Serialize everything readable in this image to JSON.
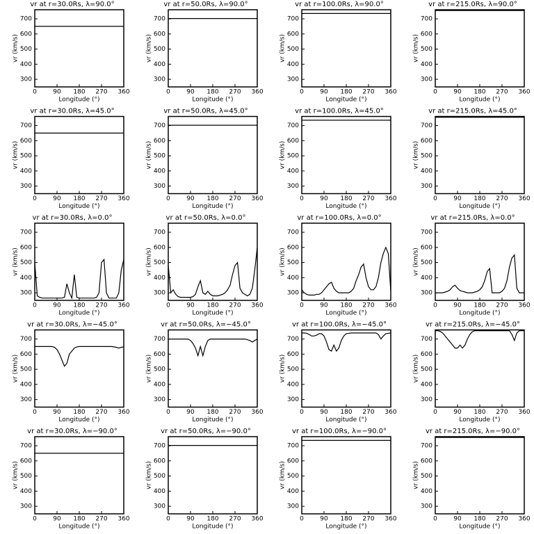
{
  "chart_data": [
    {
      "type": "line",
      "title": "vr at r=30.0Rs, λ=90.0°",
      "xlabel": "Longitude (°)",
      "ylabel": "vr (km/s)",
      "x": [
        0,
        360
      ],
      "values": [
        650,
        650
      ],
      "xlim": [
        0,
        360
      ],
      "ylim": [
        250,
        760
      ],
      "xticks": [
        0,
        90,
        180,
        270,
        360
      ],
      "yticks": [
        300,
        400,
        500,
        600,
        700
      ],
      "color": "#000000"
    },
    {
      "type": "line",
      "title": "vr at r=50.0Rs, λ=90.0°",
      "xlabel": "Longitude (°)",
      "ylabel": "vr (km/s)",
      "x": [
        0,
        360
      ],
      "values": [
        702,
        702
      ],
      "xlim": [
        0,
        360
      ],
      "ylim": [
        250,
        760
      ],
      "xticks": [
        0,
        90,
        180,
        270,
        360
      ],
      "yticks": [
        300,
        400,
        500,
        600,
        700
      ],
      "color": "#000000"
    },
    {
      "type": "line",
      "title": "vr at r=100.0Rs, λ=90.0°",
      "xlabel": "Longitude (°)",
      "ylabel": "vr (km/s)",
      "x": [
        0,
        360
      ],
      "values": [
        735,
        735
      ],
      "xlim": [
        0,
        360
      ],
      "ylim": [
        250,
        760
      ],
      "xticks": [
        0,
        90,
        180,
        270,
        360
      ],
      "yticks": [
        300,
        400,
        500,
        600,
        700
      ],
      "color": "#000000"
    },
    {
      "type": "line",
      "title": "vr at r=215.0Rs, λ=90.0°",
      "xlabel": "Longitude (°)",
      "ylabel": "vr (km/s)",
      "x": [
        0,
        360
      ],
      "values": [
        755,
        755
      ],
      "xlim": [
        0,
        360
      ],
      "ylim": [
        250,
        760
      ],
      "xticks": [
        0,
        90,
        180,
        270,
        360
      ],
      "yticks": [
        300,
        400,
        500,
        600,
        700
      ],
      "color": "#000000"
    },
    {
      "type": "line",
      "title": "vr at r=30.0Rs, λ=45.0°",
      "xlabel": "Longitude (°)",
      "ylabel": "vr (km/s)",
      "x": [
        0,
        360
      ],
      "values": [
        650,
        650
      ],
      "xlim": [
        0,
        360
      ],
      "ylim": [
        250,
        760
      ],
      "xticks": [
        0,
        90,
        180,
        270,
        360
      ],
      "yticks": [
        300,
        400,
        500,
        600,
        700
      ],
      "color": "#000000"
    },
    {
      "type": "line",
      "title": "vr at r=50.0Rs, λ=45.0°",
      "xlabel": "Longitude (°)",
      "ylabel": "vr (km/s)",
      "x": [
        0,
        360
      ],
      "values": [
        702,
        702
      ],
      "xlim": [
        0,
        360
      ],
      "ylim": [
        250,
        760
      ],
      "xticks": [
        0,
        90,
        180,
        270,
        360
      ],
      "yticks": [
        300,
        400,
        500,
        600,
        700
      ],
      "color": "#000000"
    },
    {
      "type": "line",
      "title": "vr at r=100.0Rs, λ=45.0°",
      "xlabel": "Longitude (°)",
      "ylabel": "vr (km/s)",
      "x": [
        0,
        360
      ],
      "values": [
        735,
        735
      ],
      "xlim": [
        0,
        360
      ],
      "ylim": [
        250,
        760
      ],
      "xticks": [
        0,
        90,
        180,
        270,
        360
      ],
      "yticks": [
        300,
        400,
        500,
        600,
        700
      ],
      "color": "#000000"
    },
    {
      "type": "line",
      "title": "vr at r=215.0Rs, λ=45.0°",
      "xlabel": "Longitude (°)",
      "ylabel": "vr (km/s)",
      "x": [
        0,
        360
      ],
      "values": [
        755,
        755
      ],
      "xlim": [
        0,
        360
      ],
      "ylim": [
        250,
        760
      ],
      "xticks": [
        0,
        90,
        180,
        270,
        360
      ],
      "yticks": [
        300,
        400,
        500,
        600,
        700
      ],
      "color": "#000000"
    },
    {
      "type": "line",
      "title": "vr at r=30.0Rs, λ=0.0°",
      "xlabel": "Longitude (°)",
      "ylabel": "vr (km/s)",
      "x": [
        0,
        10,
        20,
        30,
        40,
        50,
        60,
        70,
        80,
        90,
        100,
        110,
        120,
        130,
        140,
        150,
        160,
        170,
        180,
        190,
        200,
        210,
        220,
        230,
        240,
        250,
        260,
        270,
        280,
        290,
        300,
        310,
        320,
        330,
        340,
        350,
        360
      ],
      "values": [
        500,
        280,
        270,
        265,
        265,
        265,
        265,
        265,
        265,
        265,
        265,
        265,
        270,
        360,
        300,
        265,
        420,
        270,
        265,
        265,
        265,
        265,
        265,
        265,
        265,
        270,
        300,
        500,
        520,
        300,
        265,
        265,
        265,
        265,
        300,
        450,
        520
      ],
      "xlim": [
        0,
        360
      ],
      "ylim": [
        250,
        760
      ],
      "xticks": [
        0,
        90,
        180,
        270,
        360
      ],
      "yticks": [
        300,
        400,
        500,
        600,
        700
      ],
      "color": "#000000"
    },
    {
      "type": "line",
      "title": "vr at r=50.0Rs, λ=0.0°",
      "xlabel": "Longitude (°)",
      "ylabel": "vr (km/s)",
      "x": [
        0,
        10,
        20,
        30,
        40,
        50,
        60,
        70,
        80,
        90,
        100,
        110,
        120,
        130,
        140,
        150,
        160,
        170,
        180,
        190,
        200,
        210,
        220,
        230,
        240,
        250,
        260,
        270,
        280,
        290,
        300,
        310,
        320,
        330,
        340,
        350,
        360
      ],
      "values": [
        480,
        300,
        320,
        290,
        275,
        270,
        270,
        270,
        270,
        270,
        275,
        290,
        340,
        380,
        300,
        290,
        310,
        290,
        280,
        280,
        280,
        285,
        290,
        300,
        320,
        350,
        420,
        480,
        500,
        330,
        300,
        290,
        280,
        290,
        330,
        450,
        600
      ],
      "xlim": [
        0,
        360
      ],
      "ylim": [
        250,
        760
      ],
      "xticks": [
        0,
        90,
        180,
        270,
        360
      ],
      "yticks": [
        300,
        400,
        500,
        600,
        700
      ],
      "color": "#000000"
    },
    {
      "type": "line",
      "title": "vr at r=100.0Rs, λ=0.0°",
      "xlabel": "Longitude (°)",
      "ylabel": "vr (km/s)",
      "x": [
        0,
        10,
        20,
        30,
        40,
        50,
        60,
        70,
        80,
        90,
        100,
        110,
        120,
        130,
        140,
        150,
        160,
        170,
        180,
        190,
        200,
        210,
        220,
        230,
        240,
        250,
        260,
        270,
        280,
        290,
        300,
        310,
        320,
        330,
        340,
        350,
        360
      ],
      "values": [
        320,
        300,
        290,
        285,
        285,
        285,
        290,
        290,
        300,
        320,
        340,
        360,
        370,
        330,
        310,
        300,
        300,
        300,
        300,
        300,
        310,
        330,
        380,
        420,
        470,
        490,
        400,
        340,
        320,
        320,
        340,
        400,
        500,
        560,
        600,
        560,
        310
      ],
      "xlim": [
        0,
        360
      ],
      "ylim": [
        250,
        760
      ],
      "xticks": [
        0,
        90,
        180,
        270,
        360
      ],
      "yticks": [
        300,
        400,
        500,
        600,
        700
      ],
      "color": "#000000"
    },
    {
      "type": "line",
      "title": "vr at r=215.0Rs, λ=0.0°",
      "xlabel": "Longitude (°)",
      "ylabel": "vr (km/s)",
      "x": [
        0,
        10,
        20,
        30,
        40,
        50,
        60,
        70,
        80,
        90,
        100,
        110,
        120,
        130,
        140,
        150,
        160,
        170,
        180,
        190,
        200,
        210,
        220,
        230,
        240,
        250,
        260,
        270,
        280,
        290,
        300,
        310,
        320,
        330,
        340,
        350,
        360
      ],
      "values": [
        300,
        300,
        300,
        300,
        305,
        310,
        320,
        340,
        350,
        330,
        315,
        310,
        305,
        300,
        300,
        300,
        305,
        310,
        320,
        340,
        380,
        440,
        460,
        300,
        300,
        300,
        300,
        310,
        330,
        380,
        470,
        530,
        550,
        330,
        300,
        300,
        300
      ],
      "xlim": [
        0,
        360
      ],
      "ylim": [
        250,
        760
      ],
      "xticks": [
        0,
        90,
        180,
        270,
        360
      ],
      "yticks": [
        300,
        400,
        500,
        600,
        700
      ],
      "color": "#000000"
    },
    {
      "type": "line",
      "title": "vr at r=30.0Rs, λ=−45.0°",
      "xlabel": "Longitude (°)",
      "ylabel": "vr (km/s)",
      "x": [
        0,
        10,
        20,
        30,
        40,
        50,
        60,
        70,
        80,
        90,
        100,
        110,
        120,
        130,
        140,
        150,
        160,
        170,
        180,
        190,
        200,
        210,
        220,
        230,
        240,
        250,
        260,
        270,
        280,
        290,
        300,
        310,
        320,
        330,
        340,
        350,
        360
      ],
      "values": [
        650,
        650,
        650,
        650,
        650,
        650,
        650,
        650,
        645,
        630,
        600,
        560,
        520,
        540,
        600,
        620,
        640,
        648,
        650,
        650,
        650,
        650,
        650,
        650,
        650,
        650,
        650,
        650,
        650,
        650,
        650,
        650,
        648,
        645,
        640,
        645,
        648
      ],
      "xlim": [
        0,
        360
      ],
      "ylim": [
        250,
        760
      ],
      "xticks": [
        0,
        90,
        180,
        270,
        360
      ],
      "yticks": [
        300,
        400,
        500,
        600,
        700
      ],
      "color": "#000000"
    },
    {
      "type": "line",
      "title": "vr at r=50.0Rs, λ=−45.0°",
      "xlabel": "Longitude (°)",
      "ylabel": "vr (km/s)",
      "x": [
        0,
        10,
        20,
        30,
        40,
        50,
        60,
        70,
        80,
        90,
        100,
        110,
        120,
        130,
        140,
        150,
        160,
        170,
        180,
        190,
        200,
        210,
        220,
        230,
        240,
        250,
        260,
        270,
        280,
        290,
        300,
        310,
        320,
        330,
        340,
        350,
        360
      ],
      "values": [
        700,
        700,
        700,
        700,
        700,
        700,
        700,
        700,
        700,
        690,
        670,
        640,
        590,
        650,
        590,
        650,
        690,
        700,
        700,
        700,
        700,
        700,
        700,
        700,
        700,
        700,
        700,
        700,
        700,
        700,
        700,
        700,
        695,
        690,
        680,
        690,
        700
      ],
      "xlim": [
        0,
        360
      ],
      "ylim": [
        250,
        760
      ],
      "xticks": [
        0,
        90,
        180,
        270,
        360
      ],
      "yticks": [
        300,
        400,
        500,
        600,
        700
      ],
      "color": "#000000"
    },
    {
      "type": "line",
      "title": "vr at r=100.0Rs, λ=−45.0°",
      "xlabel": "Longitude (°)",
      "ylabel": "vr (km/s)",
      "x": [
        0,
        10,
        20,
        30,
        40,
        50,
        60,
        70,
        80,
        90,
        100,
        110,
        120,
        130,
        140,
        150,
        160,
        170,
        180,
        190,
        200,
        210,
        220,
        230,
        240,
        250,
        260,
        270,
        280,
        290,
        300,
        310,
        320,
        330,
        340,
        350,
        360
      ],
      "values": [
        740,
        740,
        738,
        730,
        720,
        720,
        725,
        735,
        735,
        720,
        680,
        630,
        620,
        660,
        620,
        640,
        690,
        720,
        735,
        738,
        740,
        740,
        740,
        740,
        740,
        740,
        740,
        740,
        740,
        740,
        740,
        730,
        700,
        720,
        735,
        738,
        740
      ],
      "xlim": [
        0,
        360
      ],
      "ylim": [
        250,
        760
      ],
      "xticks": [
        0,
        90,
        180,
        270,
        360
      ],
      "yticks": [
        300,
        400,
        500,
        600,
        700
      ],
      "color": "#000000"
    },
    {
      "type": "line",
      "title": "vr at r=215.0Rs, λ=−45.0°",
      "xlabel": "Longitude (°)",
      "ylabel": "vr (km/s)",
      "x": [
        0,
        10,
        20,
        30,
        40,
        50,
        60,
        70,
        80,
        90,
        100,
        110,
        120,
        130,
        140,
        150,
        160,
        170,
        180,
        190,
        200,
        210,
        220,
        230,
        240,
        250,
        260,
        270,
        280,
        290,
        300,
        310,
        320,
        330,
        340,
        350,
        360
      ],
      "values": [
        755,
        755,
        750,
        740,
        720,
        700,
        680,
        660,
        640,
        640,
        660,
        640,
        660,
        700,
        730,
        748,
        755,
        755,
        755,
        755,
        755,
        755,
        755,
        755,
        755,
        755,
        755,
        755,
        755,
        755,
        755,
        730,
        690,
        740,
        755,
        755,
        755
      ],
      "xlim": [
        0,
        360
      ],
      "ylim": [
        250,
        760
      ],
      "xticks": [
        0,
        90,
        180,
        270,
        360
      ],
      "yticks": [
        300,
        400,
        500,
        600,
        700
      ],
      "color": "#000000"
    },
    {
      "type": "line",
      "title": "vr at r=30.0Rs, λ=−90.0°",
      "xlabel": "Longitude (°)",
      "ylabel": "vr (km/s)",
      "x": [
        0,
        360
      ],
      "values": [
        650,
        650
      ],
      "xlim": [
        0,
        360
      ],
      "ylim": [
        250,
        760
      ],
      "xticks": [
        0,
        90,
        180,
        270,
        360
      ],
      "yticks": [
        300,
        400,
        500,
        600,
        700
      ],
      "color": "#000000"
    },
    {
      "type": "line",
      "title": "vr at r=50.0Rs, λ=−90.0°",
      "xlabel": "Longitude (°)",
      "ylabel": "vr (km/s)",
      "x": [
        0,
        360
      ],
      "values": [
        702,
        702
      ],
      "xlim": [
        0,
        360
      ],
      "ylim": [
        250,
        760
      ],
      "xticks": [
        0,
        90,
        180,
        270,
        360
      ],
      "yticks": [
        300,
        400,
        500,
        600,
        700
      ],
      "color": "#000000"
    },
    {
      "type": "line",
      "title": "vr at r=100.0Rs, λ=−90.0°",
      "xlabel": "Longitude (°)",
      "ylabel": "vr (km/s)",
      "x": [
        0,
        360
      ],
      "values": [
        735,
        735
      ],
      "xlim": [
        0,
        360
      ],
      "ylim": [
        250,
        760
      ],
      "xticks": [
        0,
        90,
        180,
        270,
        360
      ],
      "yticks": [
        300,
        400,
        500,
        600,
        700
      ],
      "color": "#000000"
    },
    {
      "type": "line",
      "title": "vr at r=215.0Rs, λ=−90.0°",
      "xlabel": "Longitude (°)",
      "ylabel": "vr (km/s)",
      "x": [
        0,
        360
      ],
      "values": [
        755,
        755
      ],
      "xlim": [
        0,
        360
      ],
      "ylim": [
        250,
        760
      ],
      "xticks": [
        0,
        90,
        180,
        270,
        360
      ],
      "yticks": [
        300,
        400,
        500,
        600,
        700
      ],
      "color": "#000000"
    }
  ]
}
